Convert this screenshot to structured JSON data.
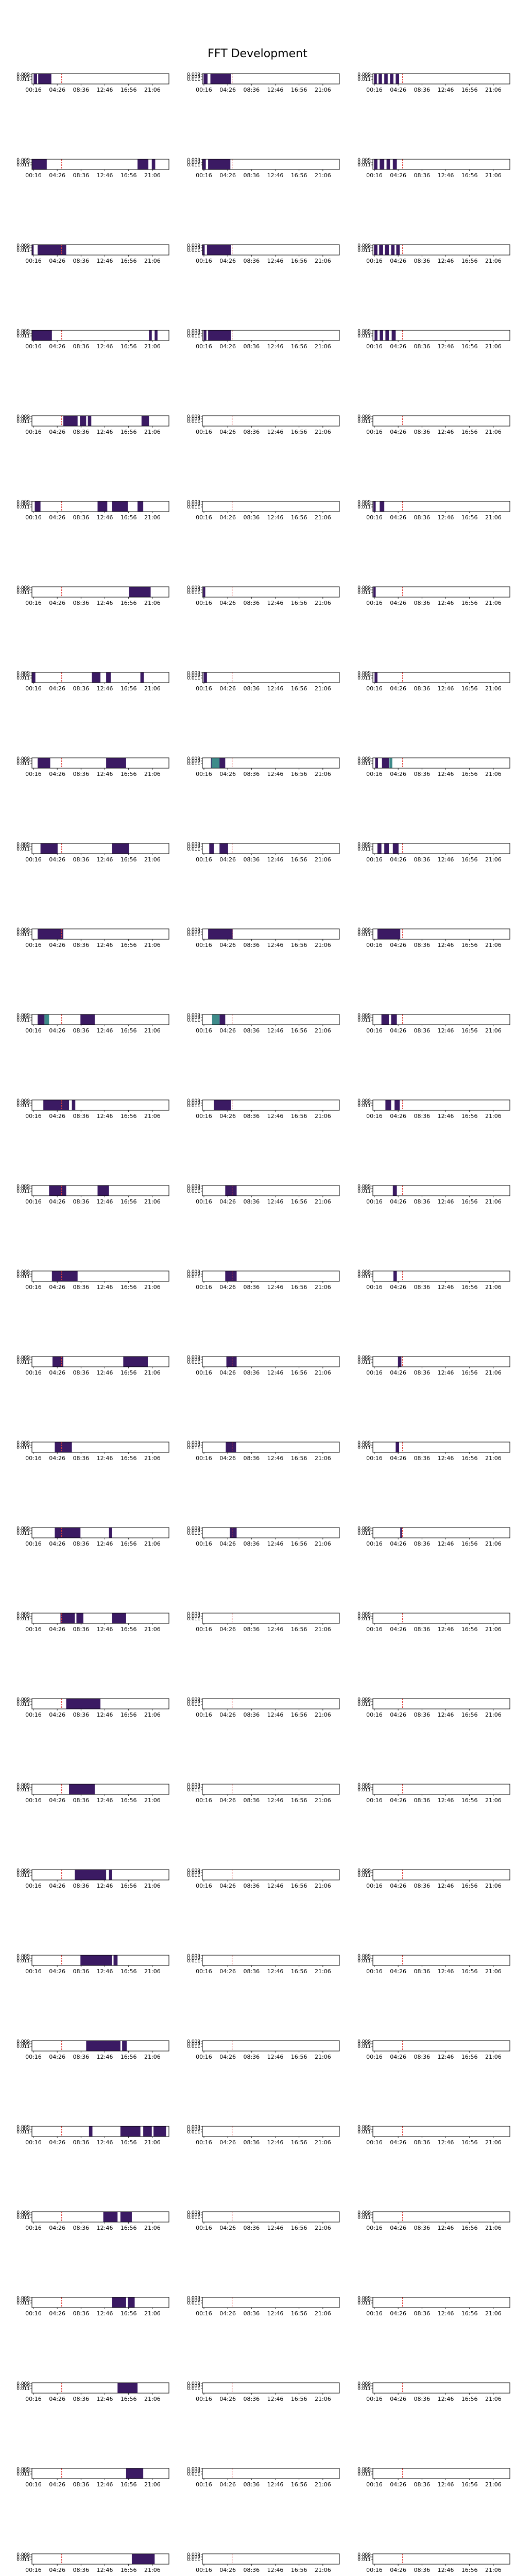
{
  "chart_data": {
    "type": "heatmap",
    "title": "FFT Development",
    "grid": false,
    "columns": 3,
    "rows": 30,
    "x_tick_labels": [
      "00:16",
      "04:26",
      "08:36",
      "12:46",
      "16:56",
      "21:06"
    ],
    "x_tick_values_hours": [
      0.267,
      4.433,
      8.6,
      12.767,
      16.933,
      21.1
    ],
    "xlim_hours": [
      0.0,
      24.0
    ],
    "y_tick_labels": [
      "0.009",
      "0.009",
      "0.011"
    ],
    "current_time_marker_hours": 5.2,
    "colors": {
      "filled": "#3b1a63",
      "highlight": "#3e8b8a",
      "marker": "#e0413a",
      "frame": "#000000",
      "empty": "#ffffff"
    },
    "panels": [
      [
        {
          "bands": [
            [
              0.3,
              0.9
            ],
            [
              1.1,
              3.4
            ]
          ]
        },
        {
          "bands": [
            [
              0.2,
              0.9
            ],
            [
              1.4,
              5.0
            ]
          ]
        },
        {
          "bands": [
            [
              0.2,
              0.7
            ],
            [
              1.0,
              1.6
            ],
            [
              2.0,
              2.6
            ],
            [
              3.0,
              3.6
            ],
            [
              4.0,
              4.6
            ]
          ]
        }
      ],
      [
        {
          "bands": [
            [
              0.0,
              2.6
            ],
            [
              18.5,
              20.4
            ],
            [
              21.0,
              21.6
            ]
          ]
        },
        {
          "bands": [
            [
              0.0,
              0.6
            ],
            [
              1.0,
              4.9
            ]
          ]
        },
        {
          "bands": [
            [
              0.2,
              0.8
            ],
            [
              1.2,
              2.0
            ],
            [
              2.4,
              3.0
            ],
            [
              3.5,
              4.2
            ]
          ]
        }
      ],
      [
        {
          "bands": [
            [
              0.0,
              0.3
            ],
            [
              1.0,
              6.0
            ]
          ]
        },
        {
          "bands": [
            [
              0.0,
              0.4
            ],
            [
              0.8,
              5.0
            ]
          ]
        },
        {
          "bands": [
            [
              0.2,
              0.8
            ],
            [
              1.1,
              1.8
            ],
            [
              2.1,
              2.8
            ],
            [
              3.2,
              3.8
            ],
            [
              4.1,
              4.7
            ]
          ]
        }
      ],
      [
        {
          "bands": [
            [
              0.0,
              3.5
            ],
            [
              20.5,
              21.0
            ],
            [
              21.5,
              22.0
            ]
          ]
        },
        {
          "bands": [
            [
              0.2,
              0.7
            ],
            [
              1.0,
              5.0
            ]
          ]
        },
        {
          "bands": [
            [
              0.3,
              0.8
            ],
            [
              1.2,
              1.8
            ],
            [
              2.2,
              2.8
            ],
            [
              3.3,
              4.0
            ]
          ]
        }
      ],
      [
        {
          "bands": [
            [
              5.5,
              8.0
            ],
            [
              8.4,
              9.5
            ],
            [
              9.8,
              10.4
            ],
            [
              19.2,
              20.5
            ]
          ]
        },
        {
          "bands": []
        },
        {
          "bands": []
        }
      ],
      [
        {
          "bands": [
            [
              0.5,
              1.5
            ],
            [
              11.5,
              13.2
            ],
            [
              14.0,
              16.8
            ],
            [
              18.5,
              19.5
            ]
          ]
        },
        {
          "bands": []
        },
        {
          "bands": [
            [
              0.1,
              0.5
            ],
            [
              1.2,
              2.0
            ]
          ]
        }
      ],
      [
        {
          "bands": [
            [
              17.0,
              20.8
            ]
          ]
        },
        {
          "bands": [
            [
              0.1,
              0.5
            ]
          ]
        },
        {
          "bands": [
            [
              0.1,
              0.5
            ]
          ]
        }
      ],
      [
        {
          "bands": [
            [
              0.0,
              0.6
            ],
            [
              10.5,
              12.0
            ],
            [
              13.0,
              13.8
            ],
            [
              19.0,
              19.6
            ]
          ]
        },
        {
          "bands": [
            [
              0.2,
              0.8
            ]
          ]
        },
        {
          "bands": [
            [
              0.3,
              0.8
            ]
          ]
        }
      ],
      [
        {
          "bands": [
            [
              1.0,
              3.2
            ],
            [
              13.0,
              16.5
            ]
          ]
        },
        {
          "bands": [
            [
              1.5,
              4.0
            ]
          ],
          "highlights": [
            [
              1.6,
              3.0
            ]
          ]
        },
        {
          "bands": [
            [
              0.4,
              0.9
            ],
            [
              1.6,
              2.8
            ]
          ],
          "highlights": [
            [
              2.9,
              3.4
            ]
          ]
        }
      ],
      [
        {
          "bands": [
            [
              1.5,
              4.5
            ],
            [
              14.0,
              17.0
            ]
          ]
        },
        {
          "bands": [
            [
              1.2,
              2.0
            ],
            [
              3.0,
              4.5
            ]
          ]
        },
        {
          "bands": [
            [
              0.8,
              1.5
            ],
            [
              2.0,
              2.8
            ],
            [
              3.5,
              4.5
            ]
          ]
        }
      ],
      [
        {
          "bands": [
            [
              1.0,
              5.5
            ]
          ]
        },
        {
          "bands": [
            [
              1.0,
              5.3
            ]
          ]
        },
        {
          "bands": [
            [
              0.8,
              4.8
            ]
          ]
        }
      ],
      [
        {
          "bands": [
            [
              1.0,
              2.2
            ],
            [
              8.5,
              11.0
            ]
          ],
          "highlights": [
            [
              2.2,
              3.0
            ]
          ]
        },
        {
          "bands": [
            [
              3.0,
              4.0
            ]
          ],
          "highlights": [
            [
              1.7,
              3.0
            ]
          ]
        },
        {
          "bands": [
            [
              1.5,
              2.8
            ],
            [
              3.2,
              4.2
            ]
          ]
        }
      ],
      [
        {
          "bands": [
            [
              2.0,
              6.5
            ],
            [
              7.0,
              7.6
            ]
          ]
        },
        {
          "bands": [
            [
              2.0,
              5.0
            ]
          ]
        },
        {
          "bands": [
            [
              2.2,
              3.2
            ],
            [
              3.8,
              4.7
            ]
          ]
        }
      ],
      [
        {
          "bands": [
            [
              3.0,
              6.0
            ],
            [
              11.5,
              13.5
            ]
          ]
        },
        {
          "bands": [
            [
              4.0,
              6.0
            ]
          ]
        },
        {
          "bands": [
            [
              3.5,
              4.2
            ]
          ]
        }
      ],
      [
        {
          "bands": [
            [
              3.5,
              8.0
            ]
          ]
        },
        {
          "bands": [
            [
              4.0,
              6.0
            ]
          ]
        },
        {
          "bands": [
            [
              3.6,
              4.2
            ]
          ]
        }
      ],
      [
        {
          "bands": [
            [
              3.6,
              5.5
            ],
            [
              16.0,
              20.3
            ]
          ]
        },
        {
          "bands": [
            [
              4.2,
              6.0
            ]
          ]
        },
        {
          "bands": [
            [
              4.4,
              5.0
            ]
          ]
        }
      ],
      [
        {
          "bands": [
            [
              4.0,
              7.0
            ]
          ]
        },
        {
          "bands": [
            [
              4.1,
              5.9
            ]
          ]
        },
        {
          "bands": [
            [
              4.0,
              4.6
            ]
          ]
        }
      ],
      [
        {
          "bands": [
            [
              4.0,
              8.5
            ],
            [
              13.5,
              14.0
            ]
          ]
        },
        {
          "bands": [
            [
              4.8,
              6.0
            ]
          ]
        },
        {
          "bands": [
            [
              4.8,
              5.1
            ]
          ]
        }
      ],
      [
        {
          "bands": [
            [
              5.0,
              7.5
            ],
            [
              7.8,
              9.0
            ],
            [
              14.0,
              16.5
            ]
          ]
        },
        {
          "bands": []
        },
        {
          "bands": []
        }
      ],
      [
        {
          "bands": [
            [
              6.0,
              12.0
            ]
          ]
        },
        {
          "bands": []
        },
        {
          "bands": []
        }
      ],
      [
        {
          "bands": [
            [
              6.5,
              11.0
            ]
          ]
        },
        {
          "bands": []
        },
        {
          "bands": []
        }
      ],
      [
        {
          "bands": [
            [
              7.5,
              13.0
            ],
            [
              13.5,
              14.0
            ]
          ]
        },
        {
          "bands": []
        },
        {
          "bands": []
        }
      ],
      [
        {
          "bands": [
            [
              8.5,
              14.0
            ],
            [
              14.3,
              15.0
            ]
          ]
        },
        {
          "bands": []
        },
        {
          "bands": []
        }
      ],
      [
        {
          "bands": [
            [
              9.5,
              15.5
            ],
            [
              15.8,
              16.6
            ]
          ]
        },
        {
          "bands": []
        },
        {
          "bands": []
        }
      ],
      [
        {
          "bands": [
            [
              10.0,
              10.6
            ],
            [
              15.5,
              19.0
            ],
            [
              19.5,
              21.0
            ],
            [
              21.3,
              23.5
            ]
          ]
        },
        {
          "bands": []
        },
        {
          "bands": []
        }
      ],
      [
        {
          "bands": [
            [
              12.5,
              15.0
            ],
            [
              15.5,
              17.5
            ]
          ]
        },
        {
          "bands": []
        },
        {
          "bands": []
        }
      ],
      [
        {
          "bands": [
            [
              14.0,
              16.5
            ],
            [
              16.8,
              18.0
            ]
          ]
        },
        {
          "bands": []
        },
        {
          "bands": []
        }
      ],
      [
        {
          "bands": [
            [
              15.0,
              18.5
            ]
          ]
        },
        {
          "bands": []
        },
        {
          "bands": []
        }
      ],
      [
        {
          "bands": [
            [
              16.5,
              19.5
            ]
          ]
        },
        {
          "bands": []
        },
        {
          "bands": []
        }
      ],
      [
        {
          "bands": [
            [
              17.5,
              21.5
            ]
          ]
        },
        {
          "bands": []
        },
        {
          "bands": []
        }
      ]
    ]
  }
}
